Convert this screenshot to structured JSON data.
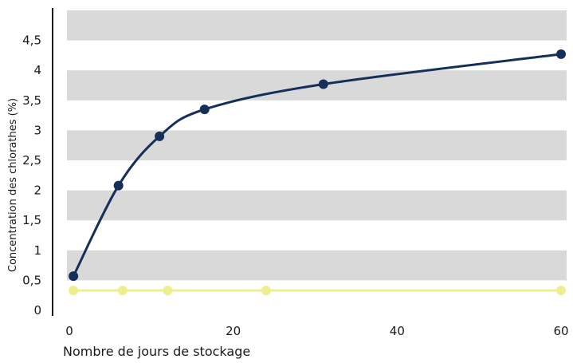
{
  "chart_data": {
    "type": "line",
    "xlabel": "Nombre de jours de stockage",
    "ylabel": "Concentration des chlorathes (%)",
    "xlim": [
      0,
      60
    ],
    "ylim": [
      0,
      5
    ],
    "x_ticks": [
      0,
      20,
      40,
      60
    ],
    "y_ticks": [
      0,
      0.5,
      1,
      1.5,
      2,
      2.5,
      3,
      3.5,
      4,
      4.5
    ],
    "y_tick_labels": [
      "0",
      "0,5",
      "1",
      "1,5",
      "2",
      "2,5",
      "3",
      "3,5",
      "4",
      "4,5"
    ],
    "grid": "alternating horizontal bands",
    "band_color": "#d9d9d9",
    "series": [
      {
        "color": "#14305a",
        "curve": "smooth",
        "points": [
          [
            0.5,
            0.57
          ],
          [
            6,
            2.08
          ],
          [
            11,
            2.9
          ],
          [
            16.5,
            3.35
          ],
          [
            31,
            3.77
          ],
          [
            60,
            4.27
          ]
        ]
      },
      {
        "color": "#f0ee8c",
        "curve": "straight",
        "points": [
          [
            0.5,
            0.33
          ],
          [
            6.5,
            0.33
          ],
          [
            12,
            0.33
          ],
          [
            24,
            0.33
          ],
          [
            60,
            0.33
          ]
        ]
      }
    ]
  }
}
